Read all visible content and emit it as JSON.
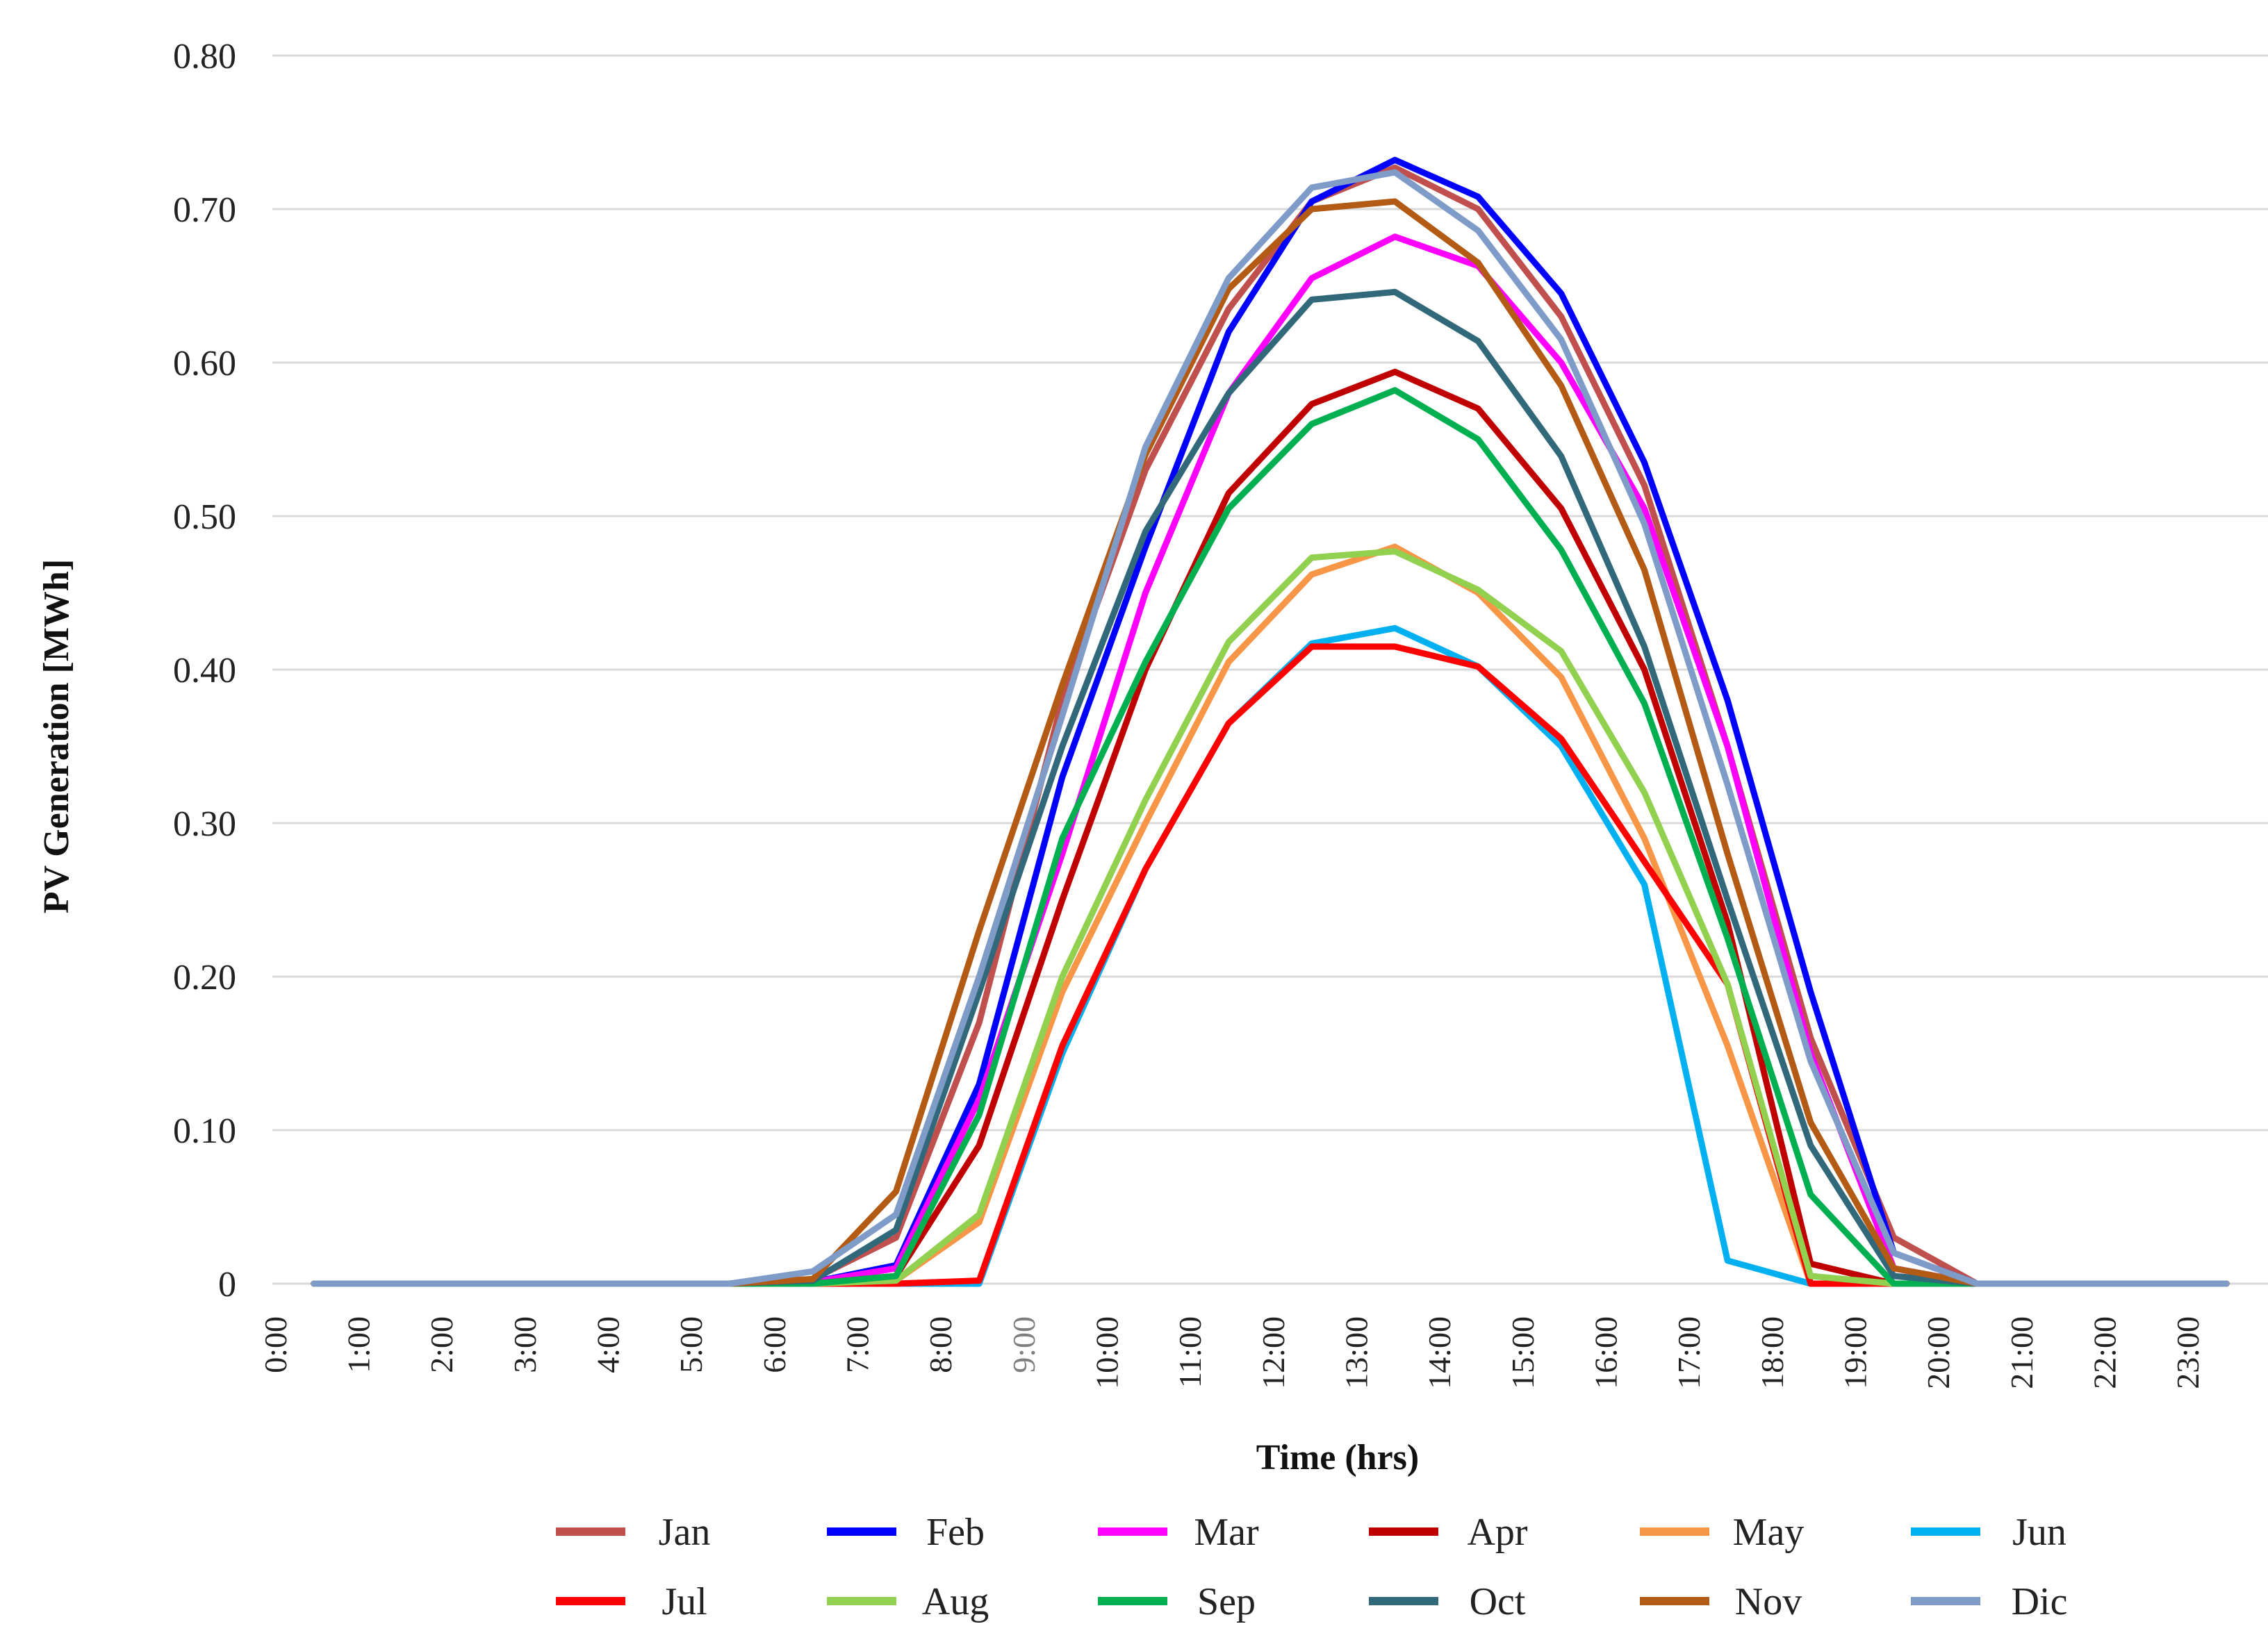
{
  "chart_data": {
    "type": "line",
    "title": "",
    "xlabel": "Time (hrs)",
    "ylabel": "PV Generation  [MWh]",
    "ylim": [
      0,
      0.8
    ],
    "yticks": [
      0,
      0.1,
      0.2,
      0.3,
      0.4,
      0.5,
      0.6,
      0.7,
      0.8
    ],
    "ytick_labels": [
      "0",
      "0.10",
      "0.20",
      "0.30",
      "0.40",
      "0.50",
      "0.60",
      "0.70",
      "0.80"
    ],
    "categories": [
      "0:00",
      "1:00",
      "2:00",
      "3:00",
      "4:00",
      "5:00",
      "6:00",
      "7:00",
      "8:00",
      "9:00",
      "10:00",
      "11:00",
      "12:00",
      "13:00",
      "14:00",
      "15:00",
      "16:00",
      "17:00",
      "18:00",
      "19:00",
      "20:00",
      "21:00",
      "22:00",
      "23:00"
    ],
    "muted_tick": "9:00",
    "grid": true,
    "legend_position": "bottom",
    "series": [
      {
        "name": "Jan",
        "color": "#c0504d",
        "values": [
          0,
          0,
          0,
          0,
          0,
          0,
          0.003,
          0.03,
          0.17,
          0.38,
          0.53,
          0.635,
          0.705,
          0.727,
          0.7,
          0.63,
          0.52,
          0.35,
          0.16,
          0.03,
          0,
          0,
          0,
          0
        ]
      },
      {
        "name": "Feb",
        "color": "#0000ff",
        "values": [
          0,
          0,
          0,
          0,
          0,
          0,
          0.001,
          0.012,
          0.13,
          0.33,
          0.48,
          0.62,
          0.705,
          0.732,
          0.708,
          0.645,
          0.535,
          0.38,
          0.19,
          0.02,
          0,
          0,
          0,
          0
        ]
      },
      {
        "name": "Mar",
        "color": "#ff00ff",
        "values": [
          0,
          0,
          0,
          0,
          0,
          0,
          0.001,
          0.01,
          0.12,
          0.28,
          0.45,
          0.58,
          0.655,
          0.682,
          0.663,
          0.6,
          0.505,
          0.35,
          0.15,
          0.01,
          0,
          0,
          0,
          0
        ]
      },
      {
        "name": "Apr",
        "color": "#c00000",
        "values": [
          0,
          0,
          0,
          0,
          0,
          0,
          0,
          0.005,
          0.09,
          0.25,
          0.4,
          0.515,
          0.573,
          0.594,
          0.57,
          0.505,
          0.4,
          0.235,
          0.013,
          0,
          0,
          0,
          0,
          0
        ]
      },
      {
        "name": "May",
        "color": "#f79646",
        "values": [
          0,
          0,
          0,
          0,
          0,
          0,
          0,
          0.002,
          0.04,
          0.19,
          0.3,
          0.405,
          0.462,
          0.48,
          0.45,
          0.395,
          0.29,
          0.155,
          0,
          0,
          0,
          0,
          0,
          0
        ]
      },
      {
        "name": "Jun",
        "color": "#00b0f0",
        "values": [
          0,
          0,
          0,
          0,
          0,
          0,
          0,
          0,
          0,
          0.15,
          0.27,
          0.365,
          0.417,
          0.427,
          0.402,
          0.35,
          0.26,
          0.015,
          0,
          0,
          0,
          0,
          0,
          0
        ]
      },
      {
        "name": "Jul",
        "color": "#ff0000",
        "values": [
          0,
          0,
          0,
          0,
          0,
          0,
          0,
          0,
          0.002,
          0.155,
          0.27,
          0.365,
          0.415,
          0.415,
          0.402,
          0.355,
          0.275,
          0.195,
          0,
          0,
          0,
          0,
          0,
          0
        ]
      },
      {
        "name": "Aug",
        "color": "#92d050",
        "values": [
          0,
          0,
          0,
          0,
          0,
          0,
          0,
          0.002,
          0.045,
          0.2,
          0.315,
          0.418,
          0.473,
          0.477,
          0.452,
          0.412,
          0.32,
          0.195,
          0.005,
          0,
          0,
          0,
          0,
          0
        ]
      },
      {
        "name": "Sep",
        "color": "#00b050",
        "values": [
          0,
          0,
          0,
          0,
          0,
          0,
          0,
          0.005,
          0.11,
          0.29,
          0.405,
          0.505,
          0.56,
          0.582,
          0.55,
          0.478,
          0.378,
          0.225,
          0.058,
          0,
          0,
          0,
          0,
          0
        ]
      },
      {
        "name": "Oct",
        "color": "#31697b",
        "values": [
          0,
          0,
          0,
          0,
          0,
          0,
          0.002,
          0.035,
          0.19,
          0.35,
          0.49,
          0.58,
          0.641,
          0.646,
          0.614,
          0.539,
          0.415,
          0.25,
          0.09,
          0.005,
          0,
          0,
          0,
          0
        ]
      },
      {
        "name": "Nov",
        "color": "#b35b14",
        "values": [
          0,
          0,
          0,
          0,
          0,
          0,
          0.003,
          0.06,
          0.23,
          0.39,
          0.54,
          0.648,
          0.7,
          0.705,
          0.665,
          0.585,
          0.465,
          0.28,
          0.105,
          0.01,
          0,
          0,
          0,
          0
        ]
      },
      {
        "name": "Dic",
        "color": "#7f9bc8",
        "values": [
          0,
          0,
          0,
          0,
          0,
          0,
          0.008,
          0.045,
          0.2,
          0.37,
          0.545,
          0.655,
          0.714,
          0.724,
          0.686,
          0.615,
          0.495,
          0.325,
          0.145,
          0.02,
          0,
          0,
          0,
          0
        ]
      }
    ]
  }
}
